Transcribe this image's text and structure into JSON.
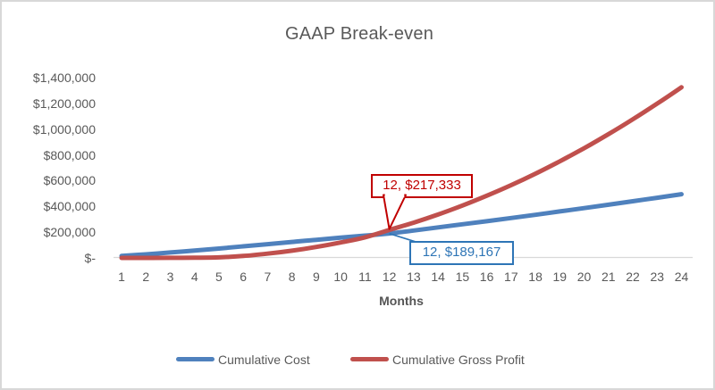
{
  "chart_data": {
    "type": "line",
    "title": "GAAP Break-even",
    "xlabel": "Months",
    "ylabel": "",
    "x": [
      1,
      2,
      3,
      4,
      5,
      6,
      7,
      8,
      9,
      10,
      11,
      12,
      13,
      14,
      15,
      16,
      17,
      18,
      19,
      20,
      21,
      22,
      23,
      24
    ],
    "series": [
      {
        "name": "Cumulative Cost",
        "color": "#4F81BD",
        "values": [
          15000,
          28000,
          42000,
          57000,
          73000,
          90000,
          107000,
          124000,
          141000,
          157000,
          173000,
          189167,
          213000,
          237000,
          261000,
          285000,
          310000,
          335000,
          361000,
          387000,
          413000,
          440000,
          467000,
          495000
        ]
      },
      {
        "name": "Cumulative Gross Profit",
        "color": "#C0504D",
        "values": [
          0,
          0,
          500,
          1500,
          4500,
          15000,
          33000,
          56000,
          85000,
          120000,
          160000,
          217333,
          274000,
          337000,
          407000,
          483000,
          565000,
          654000,
          750000,
          852000,
          961000,
          1076000,
          1198000,
          1325000
        ]
      }
    ],
    "y_axis": {
      "min": 0,
      "max": 1400000,
      "step": 200000,
      "tick_labels": [
        "$-",
        "$200,000",
        "$400,000",
        "$600,000",
        "$800,000",
        "$1,000,000",
        "$1,200,000",
        "$1,400,000"
      ]
    },
    "grid": false,
    "legend_position": "bottom",
    "annotations": [
      {
        "series": "Cumulative Gross Profit",
        "x": 12,
        "y": 217333,
        "label": "12,  $217,333",
        "color": "#C00000"
      },
      {
        "series": "Cumulative Cost",
        "x": 12,
        "y": 189167,
        "label": "12,  $189,167",
        "color": "#2E75B6"
      }
    ],
    "colors": {
      "axis_text": "#595959",
      "axis_line": "#D9D9D9",
      "frame_border": "#D8D8D8",
      "background": "#FFFFFF"
    }
  }
}
